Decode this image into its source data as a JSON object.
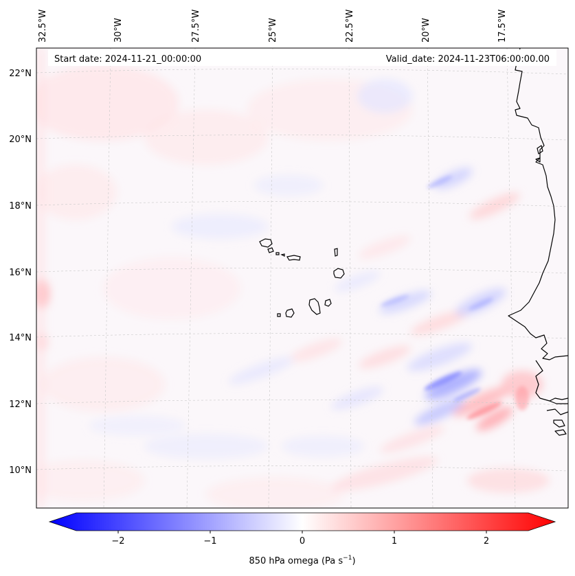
{
  "header": {
    "start_date": "Start date: 2024-11-21_00:00:00",
    "valid_date": "Valid_date: 2024-11-23T06:00:00.00"
  },
  "axes": {
    "lon_labels": [
      "32.5°W",
      "30°W",
      "27.5°W",
      "25°W",
      "22.5°W",
      "20°W",
      "17.5°W"
    ],
    "lat_labels": [
      "22°N",
      "20°N",
      "18°N",
      "16°N",
      "14°N",
      "12°N",
      "10°N"
    ],
    "gridlines": true
  },
  "colorbar": {
    "ticks": [
      "−2",
      "−1",
      "0",
      "1",
      "2"
    ],
    "label": "850 hPa omega (Pa s",
    "label_exp": "−1",
    "label_tail": ")",
    "range": [
      -2.6,
      2.6
    ],
    "cmap": "bwr",
    "extend": "both"
  },
  "colors": {
    "negative": "#0000ff",
    "zero": "#ffffff",
    "positive": "#ff0000",
    "coastline": "#000000",
    "grid": "#c8c8c8"
  }
}
